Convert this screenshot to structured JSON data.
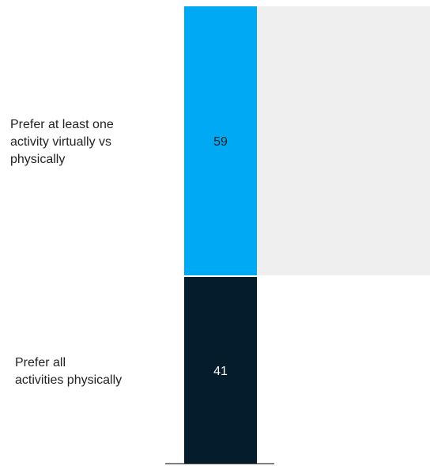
{
  "chart_data": {
    "type": "bar",
    "stacked": true,
    "orientation": "vertical",
    "segments": [
      {
        "label_lines": [
          "Prefer at least one",
          "activity virtually vs",
          "physically"
        ],
        "value": 59,
        "color": "#00a9f4",
        "text_color": "#222222"
      },
      {
        "label_lines": [
          "Prefer all",
          "activities physically"
        ],
        "value": 41,
        "color": "#051c2c",
        "text_color": "#ffffff"
      }
    ],
    "total": 100,
    "highlight_band_color": "#efefef",
    "baseline_color": "#000000"
  }
}
